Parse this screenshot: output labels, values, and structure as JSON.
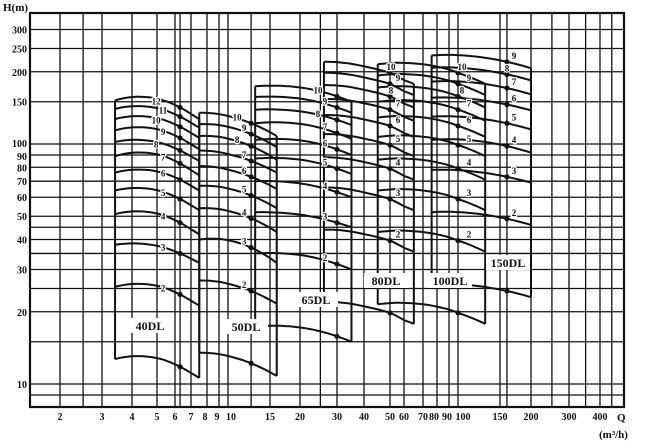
{
  "chart_data": {
    "type": "line",
    "title": "",
    "xlabel": "Q",
    "xunit": "(m³/h)",
    "ylabel": "H(m)",
    "x_scale": "log",
    "y_scale": "log",
    "xlim": [
      1.4,
      510
    ],
    "ylim": [
      8,
      350
    ],
    "grid": true,
    "x_ticks": [
      "2",
      "3",
      "4",
      "5",
      "6",
      "7",
      "8",
      "9",
      "10",
      "15",
      "20",
      "30",
      "40",
      "50",
      "60",
      "70",
      "80",
      "90",
      "100",
      "150",
      "200",
      "300",
      "400"
    ],
    "y_ticks": [
      "10",
      "20",
      "30",
      "40",
      "50",
      "60",
      "70",
      "80",
      "90",
      "100",
      "150",
      "200",
      "250",
      "300"
    ],
    "x_grid": [
      2,
      2.5,
      3,
      4,
      5,
      6,
      6.3,
      7,
      8,
      9,
      10,
      12.5,
      15,
      20,
      25,
      30,
      40,
      50,
      60,
      70,
      80,
      90,
      100,
      150,
      160,
      200,
      250,
      300,
      350,
      400,
      450
    ],
    "y_grid": [
      9,
      10,
      15,
      20,
      25,
      30,
      35,
      40,
      45,
      50,
      60,
      70,
      80,
      90,
      100,
      150,
      200,
      250,
      300
    ],
    "line_color": "#111111",
    "models": [
      {
        "name": "40DL",
        "q": [
          3.4,
          6.3,
          7.5
        ],
        "curves": [
          {
            "stage": 1,
            "label": "",
            "h": [
              12.7,
              11.8,
              10.6
            ]
          },
          {
            "stage": 2,
            "label": "2",
            "h": [
              25.4,
              23.6,
              21.2
            ]
          },
          {
            "stage": 3,
            "label": "3",
            "h": [
              38,
              35,
              32
            ]
          },
          {
            "stage": 4,
            "label": "4",
            "h": [
              51,
              47,
              42
            ]
          },
          {
            "stage": 5,
            "label": "5",
            "h": [
              64,
              59,
              53
            ]
          },
          {
            "stage": 6,
            "label": "6",
            "h": [
              76,
              71,
              64
            ]
          },
          {
            "stage": 7,
            "label": "7",
            "h": [
              89,
              83,
              74
            ]
          },
          {
            "stage": 8,
            "label": "8",
            "h": [
              102,
              94,
              85
            ]
          },
          {
            "stage": 9,
            "label": "9",
            "h": [
              114,
              106,
              95
            ]
          },
          {
            "stage": 10,
            "label": "10",
            "h": [
              127,
              118,
              106
            ]
          },
          {
            "stage": 11,
            "label": "11",
            "h": [
              140,
              130,
              117
            ]
          },
          {
            "stage": 12,
            "label": "12",
            "h": [
              152,
              142,
              127
            ]
          }
        ]
      },
      {
        "name": "50DL",
        "q": [
          7.5,
          12.5,
          16
        ],
        "curves": [
          {
            "stage": 1,
            "label": "",
            "h": [
              13.5,
              12.2,
              10.8
            ]
          },
          {
            "stage": 2,
            "label": "2",
            "h": [
              27,
              24.4,
              21.6
            ]
          },
          {
            "stage": 3,
            "label": "3",
            "h": [
              40,
              37,
              32
            ]
          },
          {
            "stage": 4,
            "label": "4",
            "h": [
              54,
              49,
              43
            ]
          },
          {
            "stage": 5,
            "label": "5",
            "h": [
              67,
              61,
              54
            ]
          },
          {
            "stage": 6,
            "label": "6",
            "h": [
              81,
              73,
              65
            ]
          },
          {
            "stage": 7,
            "label": "7",
            "h": [
              94,
              85,
              76
            ]
          },
          {
            "stage": 8,
            "label": "8",
            "h": [
              108,
              98,
              86
            ]
          },
          {
            "stage": 9,
            "label": "9",
            "h": [
              121,
              110,
              97
            ]
          },
          {
            "stage": 10,
            "label": "10",
            "h": [
              135,
              122,
              108
            ]
          }
        ]
      },
      {
        "name": "65DL",
        "q": [
          13,
          30,
          35
        ],
        "curves": [
          {
            "stage": 1,
            "label": "",
            "h": [
              17.4,
              15.8,
              15
            ]
          },
          {
            "stage": 2,
            "label": "2",
            "h": [
              35,
              31.6,
              30
            ]
          },
          {
            "stage": 3,
            "label": "3",
            "h": [
              52,
              47,
              45
            ]
          },
          {
            "stage": 4,
            "label": "4",
            "h": [
              70,
              63,
              60
            ]
          },
          {
            "stage": 5,
            "label": "5",
            "h": [
              87,
              79,
              75
            ]
          },
          {
            "stage": 6,
            "label": "6",
            "h": [
              104,
              95,
              90
            ]
          },
          {
            "stage": 7,
            "label": "7",
            "h": [
              122,
              111,
              105
            ]
          },
          {
            "stage": 8,
            "label": "8",
            "h": [
              139,
              126,
              120
            ]
          },
          {
            "stage": 9,
            "label": "9",
            "h": [
              157,
              142,
              135
            ]
          },
          {
            "stage": 10,
            "label": "10",
            "h": [
              174,
              158,
              150
            ]
          }
        ]
      },
      {
        "name": "80DL",
        "q": [
          26,
          50,
          65
        ],
        "curves": [
          {
            "stage": 1,
            "label": "",
            "h": [
              22,
              19.8,
              17.8
            ]
          },
          {
            "stage": 2,
            "label": "2",
            "h": [
              44,
              39.6,
              35.6
            ]
          },
          {
            "stage": 3,
            "label": "3",
            "h": [
              66,
              59,
              53
            ]
          },
          {
            "stage": 4,
            "label": "4",
            "h": [
              88,
              79,
              71
            ]
          },
          {
            "stage": 5,
            "label": "5",
            "h": [
              110,
              99,
              89
            ]
          },
          {
            "stage": 6,
            "label": "6",
            "h": [
              132,
              119,
              107
            ]
          },
          {
            "stage": 7,
            "label": "7",
            "h": [
              154,
              139,
              125
            ]
          },
          {
            "stage": 8,
            "label": "8",
            "h": [
              176,
              158,
              142
            ]
          },
          {
            "stage": 9,
            "label": "9",
            "h": [
              198,
              178,
              160
            ]
          },
          {
            "stage": 10,
            "label": "10",
            "h": [
              220,
              198,
              178
            ]
          }
        ]
      },
      {
        "name": "100DL",
        "q": [
          45,
          100,
          130
        ],
        "curves": [
          {
            "stage": 1,
            "label": "",
            "h": [
              21.5,
              19.8,
              17.8
            ]
          },
          {
            "stage": 2,
            "label": "2",
            "h": [
              43,
              39.6,
              35.6
            ]
          },
          {
            "stage": 3,
            "label": "3",
            "h": [
              64,
              59,
              53
            ]
          },
          {
            "stage": 4,
            "label": "4",
            "h": [
              86,
              79,
              71
            ]
          },
          {
            "stage": 5,
            "label": "5",
            "h": [
              107,
              99,
              89
            ]
          },
          {
            "stage": 6,
            "label": "6",
            "h": [
              129,
              119,
              107
            ]
          },
          {
            "stage": 7,
            "label": "7",
            "h": [
              150,
              139,
              125
            ]
          },
          {
            "stage": 8,
            "label": "8",
            "h": [
              172,
              158,
              142
            ]
          },
          {
            "stage": 9,
            "label": "9",
            "h": [
              193,
              178,
              160
            ]
          },
          {
            "stage": 10,
            "label": "10",
            "h": [
              215,
              198,
              178
            ]
          }
        ]
      },
      {
        "name": "150DL",
        "q": [
          76,
          160,
          200
        ],
        "curves": [
          {
            "stage": 1,
            "label": "",
            "h": [
              26,
              24.4,
              23
            ]
          },
          {
            "stage": 2,
            "label": "2",
            "h": [
              52,
              48.8,
              46
            ]
          },
          {
            "stage": 3,
            "label": "3",
            "h": [
              78,
              73,
              69
            ]
          },
          {
            "stage": 4,
            "label": "4",
            "h": [
              104,
              98,
              92
            ]
          },
          {
            "stage": 5,
            "label": "5",
            "h": [
              130,
              122,
              115
            ]
          },
          {
            "stage": 6,
            "label": "6",
            "h": [
              156,
              146,
              138
            ]
          },
          {
            "stage": 7,
            "label": "7",
            "h": [
              182,
              171,
              161
            ]
          },
          {
            "stage": 8,
            "label": "8",
            "h": [
              208,
              195,
              184
            ]
          },
          {
            "stage": 9,
            "label": "9",
            "h": [
              234,
              220,
              207
            ]
          }
        ]
      }
    ]
  }
}
